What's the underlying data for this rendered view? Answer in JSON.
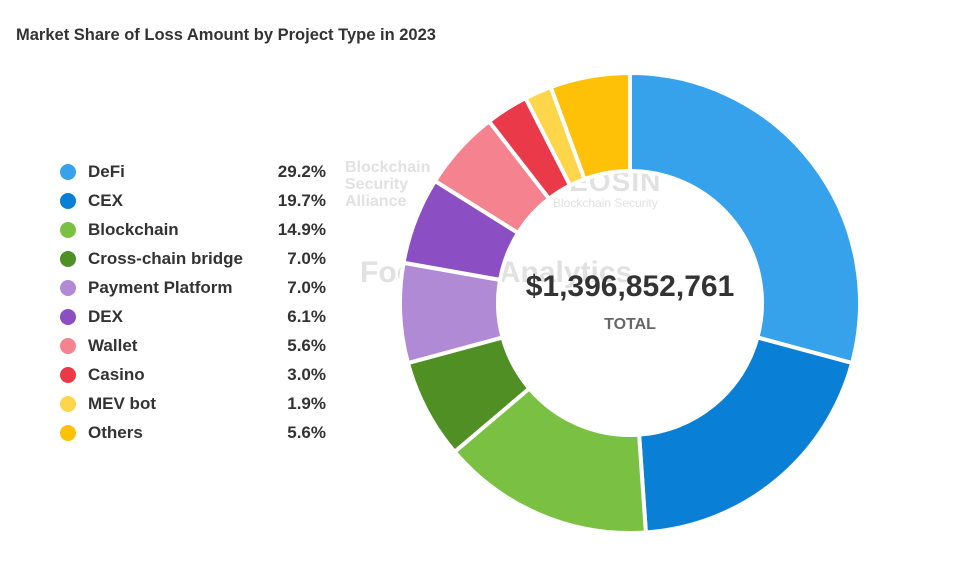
{
  "chart_data": {
    "type": "pie",
    "title": "Market Share of Loss Amount by Project Type in 2023",
    "legend_position": "left",
    "center": {
      "value": "$1,396,852,761",
      "label": "TOTAL"
    },
    "slices": [
      {
        "label": "DeFi",
        "value": 29.2,
        "display": "29.2%",
        "color": "#36a2eb"
      },
      {
        "label": "CEX",
        "value": 19.7,
        "display": "19.7%",
        "color": "#0a7fd6"
      },
      {
        "label": "Blockchain",
        "value": 14.9,
        "display": "14.9%",
        "color": "#7ac143"
      },
      {
        "label": "Cross-chain bridge",
        "value": 7.0,
        "display": "7.0%",
        "color": "#4f8f23"
      },
      {
        "label": "Payment Platform",
        "value": 7.0,
        "display": "7.0%",
        "color": "#b18ad6"
      },
      {
        "label": "DEX",
        "value": 6.1,
        "display": "6.1%",
        "color": "#8b4fc3"
      },
      {
        "label": "Wallet",
        "value": 5.6,
        "display": "5.6%",
        "color": "#f4828f"
      },
      {
        "label": "Casino",
        "value": 3.0,
        "display": "3.0%",
        "color": "#ea3a4a"
      },
      {
        "label": "MEV bot",
        "value": 1.9,
        "display": "1.9%",
        "color": "#ffd54a"
      },
      {
        "label": "Others",
        "value": 5.6,
        "display": "5.6%",
        "color": "#ffc107"
      }
    ]
  },
  "watermarks": {
    "bsa": "Blockchain Security Alliance",
    "beosin": "BEOSIN",
    "beosin_sub": "Blockchain Security",
    "footprint": "Footprint Analytics"
  }
}
